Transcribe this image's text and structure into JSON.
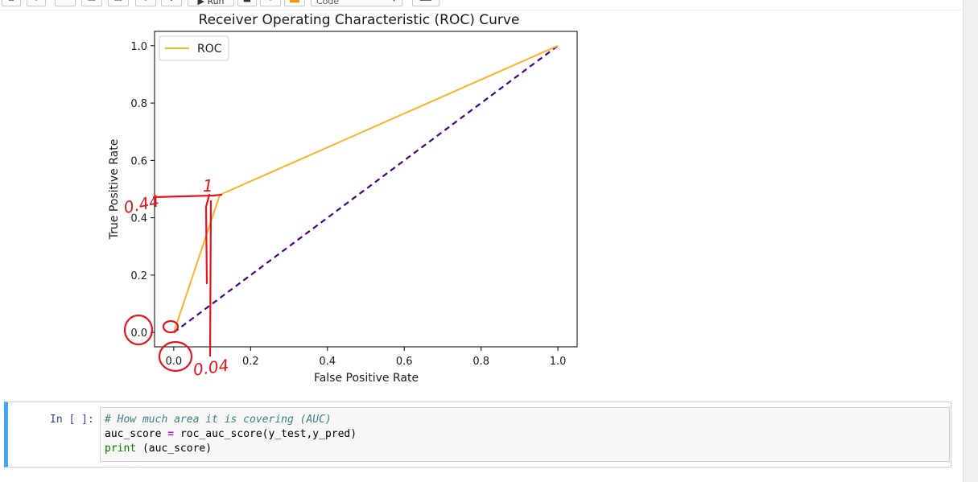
{
  "toolbar": {
    "cell_type_value": "Code",
    "run_label": "Run"
  },
  "chart_data": {
    "type": "line",
    "title": "Receiver Operating Characteristic (ROC) Curve",
    "xlabel": "False Positive Rate",
    "ylabel": "True Positive Rate",
    "xlim": [
      -0.05,
      1.05
    ],
    "ylim": [
      -0.05,
      1.05
    ],
    "x_ticks": [
      "0.0",
      "0.2",
      "0.4",
      "0.6",
      "0.8",
      "1.0"
    ],
    "y_ticks": [
      "0.0",
      "0.2",
      "0.4",
      "0.6",
      "0.8",
      "1.0"
    ],
    "legend_position": "top-left",
    "grid": false,
    "series": [
      {
        "name": "ROC",
        "color": "#fbb42a",
        "style": "solid",
        "x": [
          0.0,
          0.12,
          1.0
        ],
        "y": [
          0.0,
          0.48,
          1.0
        ]
      },
      {
        "color": "#4b0082",
        "style": "dashed",
        "x": [
          0.0,
          1.0
        ],
        "y": [
          0.0,
          1.0
        ]
      }
    ],
    "annotations": {
      "color": "#e8141c",
      "y_label": "0.44",
      "x_label": "0.04",
      "marker": "1"
    }
  },
  "cell": {
    "prompt": "In [ ]:",
    "comment": "# How much area it is covering (AUC)",
    "line2_var": "auc_score",
    "line2_op": "=",
    "line2_call": "roc_auc_score(y_test,y_pred)",
    "line3_builtin": "print",
    "line3_rest": " (auc_score)"
  }
}
